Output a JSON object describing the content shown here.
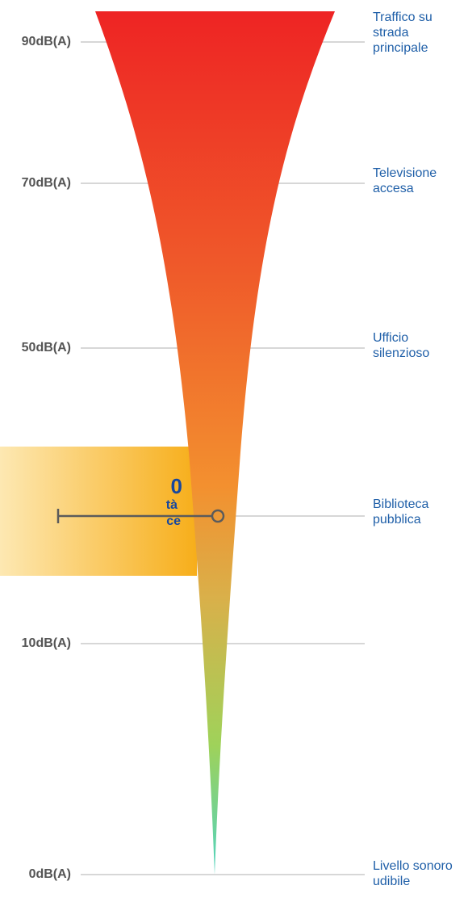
{
  "levels": [
    {
      "db": 90,
      "label": "90dB(A)",
      "example": [
        "Traffico su",
        "strada",
        "principale"
      ]
    },
    {
      "db": 70,
      "label": "70dB(A)",
      "example": [
        "Televisione",
        "accesa"
      ]
    },
    {
      "db": 50,
      "label": "50dB(A)",
      "example": [
        "Ufficio",
        "silenzioso"
      ]
    },
    {
      "db": 10,
      "label": "10dB(A)",
      "example": []
    },
    {
      "db": 0,
      "label": "0dB(A)",
      "example": [
        "Livello sonoro",
        "udibile"
      ]
    }
  ],
  "marker": {
    "example": [
      "Biblioteca",
      "pubblica"
    ]
  },
  "callout": {
    "value": "0",
    "line1": "tà",
    "line2": "ce"
  },
  "colors": {
    "funnel_top": "#ee2424",
    "funnel_upper": "#ef5a2a",
    "funnel_mid": "#f3902f",
    "funnel_lower": "#d9b04a",
    "funnel_green": "#9fd25a",
    "funnel_tip": "#4fd3c0",
    "gridline": "#d7d7d7",
    "level_text": "#555555",
    "example_text": "#1f5fa8",
    "callout_text": "#17479e",
    "callout_bg_start": "#fde8b2",
    "callout_bg_end": "#f7ae1a",
    "marker_line": "#5b5b5b"
  }
}
